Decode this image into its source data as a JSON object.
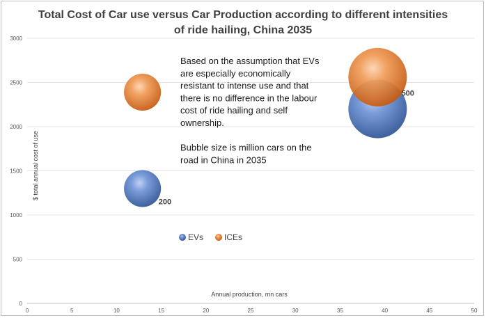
{
  "chart_data": {
    "type": "bubble",
    "title_lines": [
      "Total Cost of  Car use versus Car Production according to different intensities",
      "of ride hailing, China 2035"
    ],
    "xlabel": "Annual production, mn cars",
    "ylabel": "$ total annual cost of use",
    "xlim": [
      0,
      50
    ],
    "ylim": [
      0,
      3000
    ],
    "x_ticks": [
      "0",
      "5",
      "10",
      "15",
      "20",
      "25",
      "30",
      "35",
      "40",
      "45",
      "50"
    ],
    "y_ticks": [
      "0",
      "500",
      "1000",
      "1500",
      "2000",
      "2500",
      "3000"
    ],
    "grid": true,
    "legend_position": "bottom-left-inside",
    "series": [
      {
        "name": "EVs",
        "color": "#4472c4",
        "points": [
          {
            "x": 12.9,
            "y": 1300,
            "size": 200
          },
          {
            "x": 39.2,
            "y": 2200,
            "size": 500
          }
        ]
      },
      {
        "name": "ICEs",
        "color": "#ed7d31",
        "points": [
          {
            "x": 12.9,
            "y": 2390,
            "size": 200
          },
          {
            "x": 39.2,
            "y": 2560,
            "size": 500
          }
        ]
      }
    ],
    "data_labels": [
      {
        "text": "200",
        "x": 12.9,
        "y": 1300
      },
      {
        "text": "500",
        "x": 39.2,
        "y": 2200
      }
    ],
    "annotation_lines": [
      "Based on the assumption that EVs",
      "are especially economically",
      "resistant to intense use and that",
      "there is no difference in the labour",
      "cost of ride hailing and self",
      "ownership.",
      "",
      "Bubble size is million cars on the",
      "road in China in 2035"
    ]
  }
}
